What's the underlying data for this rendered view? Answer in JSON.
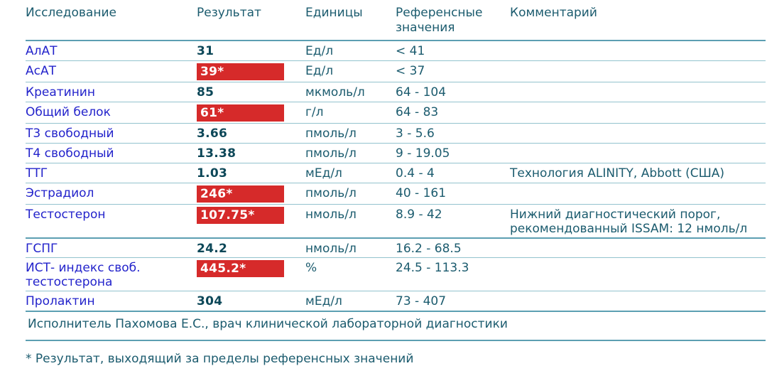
{
  "table": {
    "columns": [
      {
        "label": "Исследование"
      },
      {
        "label": "Результат"
      },
      {
        "label": "Единицы"
      },
      {
        "label": "Референсные значения"
      },
      {
        "label": "Комментарий"
      }
    ],
    "rows": [
      {
        "name": "АлАТ",
        "result": "31",
        "flagged": false,
        "units": "Ед/л",
        "reference": "< 41",
        "comment": ""
      },
      {
        "name": "АсАТ",
        "result": "39*",
        "flagged": true,
        "units": "Ед/л",
        "reference": "< 37",
        "comment": ""
      },
      {
        "name": "Креатинин",
        "result": "85",
        "flagged": false,
        "units": "мкмоль/л",
        "reference": "64 - 104",
        "comment": ""
      },
      {
        "name": "Общий белок",
        "result": "61*",
        "flagged": true,
        "units": "г/л",
        "reference": "64 - 83",
        "comment": ""
      },
      {
        "name": "Т3 свободный",
        "result": "3.66",
        "flagged": false,
        "units": "пмоль/л",
        "reference": "3 - 5.6",
        "comment": ""
      },
      {
        "name": "Т4 свободный",
        "result": "13.38",
        "flagged": false,
        "units": "пмоль/л",
        "reference": "9 - 19.05",
        "comment": ""
      },
      {
        "name": "ТТГ",
        "result": "1.03",
        "flagged": false,
        "units": "мЕд/л",
        "reference": "0.4 - 4",
        "comment": "Технология ALINITY, Abbott (США)"
      },
      {
        "name": "Эстрадиол",
        "result": "246*",
        "flagged": true,
        "units": "пмоль/л",
        "reference": "40 - 161",
        "comment": ""
      },
      {
        "name": "Тестостерон",
        "result": "107.75*",
        "flagged": true,
        "units": "нмоль/л",
        "reference": "8.9 - 42",
        "comment": "Нижний диагностический порог, рекомендованный ISSAM: 12 нмоль/л"
      },
      {
        "name": "ГСПГ",
        "result": "24.2",
        "flagged": false,
        "units": "нмоль/л",
        "reference": "16.2 - 68.5",
        "comment": ""
      },
      {
        "name": "ИСТ- индекс своб. тестостерона",
        "result": "445.2*",
        "flagged": true,
        "units": "%",
        "reference": "24.5 - 113.3",
        "comment": ""
      },
      {
        "name": "Пролактин",
        "result": "304",
        "flagged": false,
        "units": "мЕд/л",
        "reference": "73 - 407",
        "comment": ""
      }
    ]
  },
  "footer": {
    "executor": "Исполнитель Пахомова Е.С., врач клинической лабораторной диагностики"
  },
  "footnote": "* Результат, выходящий за пределы референсных значений",
  "colors": {
    "flag_red": "#d62a2a",
    "text_teal": "#1b5b6e",
    "result_teal": "#0c4758",
    "name_blue": "#2323cb",
    "line_teal": "#93c3ce",
    "line_strong_teal": "#5c9fb2"
  }
}
